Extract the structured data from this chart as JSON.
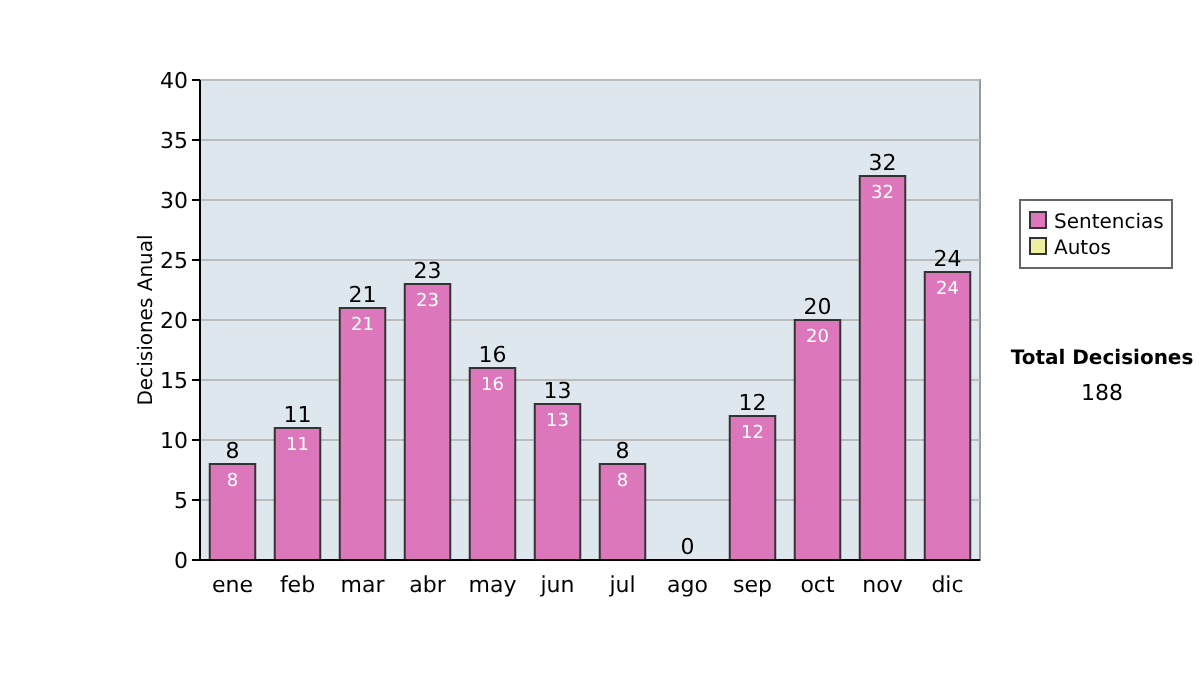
{
  "chart_data": {
    "type": "bar",
    "ylabel": "Decisiones Anual",
    "categories": [
      "ene",
      "feb",
      "mar",
      "abr",
      "may",
      "jun",
      "jul",
      "ago",
      "sep",
      "oct",
      "nov",
      "dic"
    ],
    "series": [
      {
        "name": "Sentencias",
        "color": "#dd77bb",
        "values": [
          8,
          11,
          21,
          23,
          16,
          13,
          8,
          0,
          12,
          20,
          32,
          24
        ],
        "value_labels": [
          "8",
          "11",
          "21",
          "23",
          "16",
          "13",
          "8",
          null,
          "12",
          "20",
          "32",
          "24"
        ]
      },
      {
        "name": "Autos",
        "color": "#eef0a0",
        "values": [
          0,
          0,
          0,
          0,
          0,
          0,
          0,
          0,
          0,
          0,
          0,
          0
        ]
      }
    ],
    "stacked": true,
    "totals": [
      "8",
      "11",
      "21",
      "23",
      "16",
      "13",
      "8",
      "0",
      "12",
      "20",
      "32",
      "24"
    ],
    "ylim": [
      0,
      40
    ],
    "yticks": [
      0,
      5,
      10,
      15,
      20,
      25,
      30,
      35,
      40
    ],
    "grid": "y",
    "legend": "right",
    "annotations": [
      "Total Decisiones",
      "188"
    ]
  }
}
